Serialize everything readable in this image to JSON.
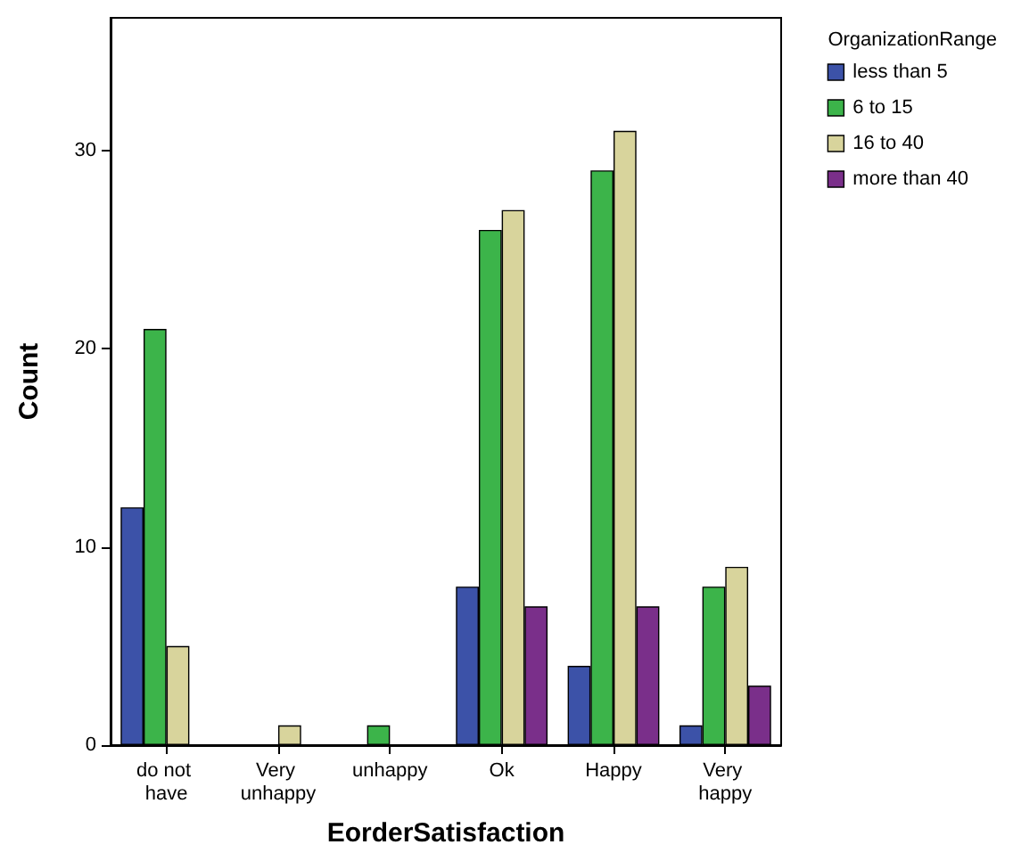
{
  "chart_data": {
    "type": "bar",
    "xlabel": "EorderSatisfaction",
    "ylabel": "Count",
    "legend_title": "OrganizationRange",
    "categories": [
      "do not have",
      "Very unhappy",
      "unhappy",
      "Ok",
      "Happy",
      "Very happy"
    ],
    "series": [
      {
        "name": "less than 5",
        "color": "#3c52a8",
        "values": [
          12,
          0,
          0,
          8,
          4,
          1
        ]
      },
      {
        "name": "6 to 15",
        "color": "#3cb44a",
        "values": [
          21,
          0,
          1,
          26,
          29,
          8
        ]
      },
      {
        "name": "16 to 40",
        "color": "#d8d49c",
        "values": [
          5,
          1,
          0,
          27,
          31,
          9
        ]
      },
      {
        "name": "more than 40",
        "color": "#7a2f8a",
        "values": [
          0,
          0,
          0,
          7,
          7,
          3
        ]
      }
    ],
    "ylim": [
      0,
      36.7
    ],
    "yticks": [
      0,
      10,
      20,
      30
    ],
    "grid": false,
    "legend": "top right"
  }
}
